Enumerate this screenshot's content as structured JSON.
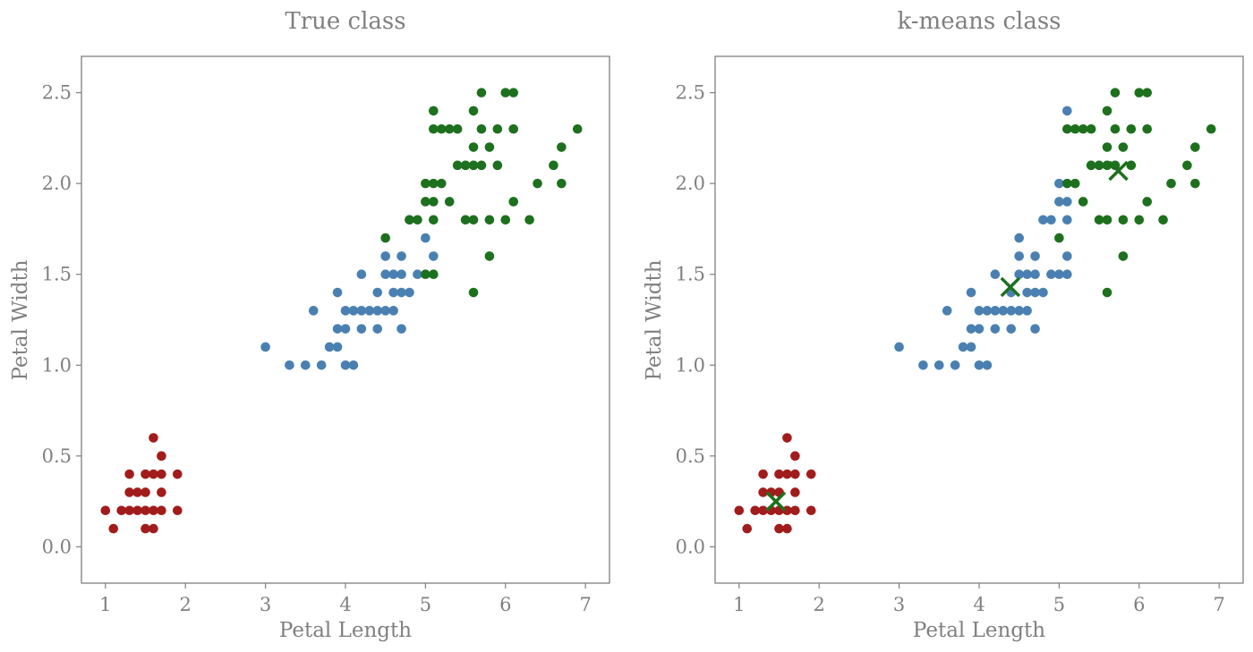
{
  "colors": {
    "text": "#808080",
    "frame": "#808080",
    "setosa": "#a11c1c",
    "versicolor": "#4a80b1",
    "virginica": "#1d701d",
    "centroid": "#1d701d",
    "background": "#ffffff"
  },
  "chart_data": [
    {
      "type": "scatter",
      "title": "True class",
      "xlabel": "Petal Length",
      "ylabel": "Petal Width",
      "xlim": [
        0.7,
        7.3
      ],
      "ylim": [
        -0.2,
        2.7
      ],
      "xticks": [
        1,
        2,
        3,
        4,
        5,
        6,
        7
      ],
      "yticks": [
        0.0,
        0.5,
        1.0,
        1.5,
        2.0,
        2.5
      ],
      "grid": false,
      "legend": "none",
      "series": [
        {
          "color": "#a11c1c",
          "points": [
            [
              1.0,
              0.2
            ],
            [
              1.1,
              0.1
            ],
            [
              1.2,
              0.2
            ],
            [
              1.3,
              0.2
            ],
            [
              1.3,
              0.3
            ],
            [
              1.3,
              0.4
            ],
            [
              1.4,
              0.2
            ],
            [
              1.4,
              0.3
            ],
            [
              1.5,
              0.1
            ],
            [
              1.5,
              0.2
            ],
            [
              1.5,
              0.3
            ],
            [
              1.5,
              0.4
            ],
            [
              1.6,
              0.2
            ],
            [
              1.6,
              0.4
            ],
            [
              1.6,
              0.6
            ],
            [
              1.7,
              0.2
            ],
            [
              1.7,
              0.3
            ],
            [
              1.7,
              0.4
            ],
            [
              1.7,
              0.5
            ],
            [
              1.9,
              0.2
            ],
            [
              1.9,
              0.4
            ],
            [
              1.6,
              0.1
            ]
          ]
        },
        {
          "color": "#4a80b1",
          "points": [
            [
              3.0,
              1.1
            ],
            [
              3.3,
              1.0
            ],
            [
              3.5,
              1.0
            ],
            [
              3.6,
              1.3
            ],
            [
              3.7,
              1.0
            ],
            [
              3.8,
              1.1
            ],
            [
              3.9,
              1.1
            ],
            [
              3.9,
              1.2
            ],
            [
              3.9,
              1.4
            ],
            [
              4.0,
              1.0
            ],
            [
              4.0,
              1.2
            ],
            [
              4.0,
              1.3
            ],
            [
              4.1,
              1.0
            ],
            [
              4.1,
              1.3
            ],
            [
              4.2,
              1.2
            ],
            [
              4.2,
              1.3
            ],
            [
              4.2,
              1.5
            ],
            [
              4.3,
              1.3
            ],
            [
              4.4,
              1.2
            ],
            [
              4.4,
              1.3
            ],
            [
              4.4,
              1.4
            ],
            [
              4.5,
              1.3
            ],
            [
              4.5,
              1.5
            ],
            [
              4.5,
              1.6
            ],
            [
              4.6,
              1.3
            ],
            [
              4.6,
              1.4
            ],
            [
              4.6,
              1.5
            ],
            [
              4.7,
              1.2
            ],
            [
              4.7,
              1.4
            ],
            [
              4.7,
              1.5
            ],
            [
              4.7,
              1.6
            ],
            [
              4.8,
              1.4
            ],
            [
              4.8,
              1.8
            ],
            [
              4.9,
              1.5
            ],
            [
              5.0,
              1.7
            ],
            [
              5.1,
              1.6
            ]
          ]
        },
        {
          "color": "#1d701d",
          "points": [
            [
              4.5,
              1.7
            ],
            [
              4.8,
              1.8
            ],
            [
              4.9,
              1.8
            ],
            [
              5.0,
              1.5
            ],
            [
              5.0,
              1.9
            ],
            [
              5.0,
              2.0
            ],
            [
              5.1,
              1.5
            ],
            [
              5.1,
              1.8
            ],
            [
              5.1,
              1.9
            ],
            [
              5.1,
              2.0
            ],
            [
              5.1,
              2.3
            ],
            [
              5.1,
              2.4
            ],
            [
              5.2,
              2.0
            ],
            [
              5.2,
              2.3
            ],
            [
              5.3,
              1.9
            ],
            [
              5.3,
              2.3
            ],
            [
              5.4,
              2.1
            ],
            [
              5.4,
              2.3
            ],
            [
              5.5,
              1.8
            ],
            [
              5.5,
              2.1
            ],
            [
              5.6,
              1.4
            ],
            [
              5.6,
              1.8
            ],
            [
              5.6,
              2.1
            ],
            [
              5.6,
              2.2
            ],
            [
              5.6,
              2.4
            ],
            [
              5.7,
              2.1
            ],
            [
              5.7,
              2.3
            ],
            [
              5.7,
              2.5
            ],
            [
              5.8,
              1.6
            ],
            [
              5.8,
              1.8
            ],
            [
              5.8,
              2.2
            ],
            [
              5.9,
              2.1
            ],
            [
              5.9,
              2.3
            ],
            [
              6.0,
              1.8
            ],
            [
              6.0,
              2.5
            ],
            [
              6.1,
              1.9
            ],
            [
              6.1,
              2.3
            ],
            [
              6.1,
              2.5
            ],
            [
              6.3,
              1.8
            ],
            [
              6.4,
              2.0
            ],
            [
              6.6,
              2.1
            ],
            [
              6.7,
              2.0
            ],
            [
              6.7,
              2.2
            ],
            [
              6.9,
              2.3
            ]
          ]
        }
      ]
    },
    {
      "type": "scatter",
      "title": "k-means class",
      "xlabel": "Petal Length",
      "ylabel": "Petal Width",
      "xlim": [
        0.7,
        7.3
      ],
      "ylim": [
        -0.2,
        2.7
      ],
      "xticks": [
        1,
        2,
        3,
        4,
        5,
        6,
        7
      ],
      "yticks": [
        0.0,
        0.5,
        1.0,
        1.5,
        2.0,
        2.5
      ],
      "grid": false,
      "legend": "none",
      "series": [
        {
          "color": "#a11c1c",
          "points": [
            [
              1.0,
              0.2
            ],
            [
              1.1,
              0.1
            ],
            [
              1.2,
              0.2
            ],
            [
              1.3,
              0.2
            ],
            [
              1.3,
              0.3
            ],
            [
              1.3,
              0.4
            ],
            [
              1.4,
              0.2
            ],
            [
              1.4,
              0.3
            ],
            [
              1.5,
              0.1
            ],
            [
              1.5,
              0.2
            ],
            [
              1.5,
              0.3
            ],
            [
              1.5,
              0.4
            ],
            [
              1.6,
              0.2
            ],
            [
              1.6,
              0.4
            ],
            [
              1.6,
              0.6
            ],
            [
              1.7,
              0.2
            ],
            [
              1.7,
              0.3
            ],
            [
              1.7,
              0.4
            ],
            [
              1.7,
              0.5
            ],
            [
              1.9,
              0.2
            ],
            [
              1.9,
              0.4
            ],
            [
              1.6,
              0.1
            ]
          ]
        },
        {
          "color": "#4a80b1",
          "points": [
            [
              3.0,
              1.1
            ],
            [
              3.3,
              1.0
            ],
            [
              3.5,
              1.0
            ],
            [
              3.6,
              1.3
            ],
            [
              3.7,
              1.0
            ],
            [
              3.8,
              1.1
            ],
            [
              3.9,
              1.1
            ],
            [
              3.9,
              1.2
            ],
            [
              3.9,
              1.4
            ],
            [
              4.0,
              1.0
            ],
            [
              4.0,
              1.2
            ],
            [
              4.0,
              1.3
            ],
            [
              4.1,
              1.0
            ],
            [
              4.1,
              1.3
            ],
            [
              4.2,
              1.2
            ],
            [
              4.2,
              1.3
            ],
            [
              4.2,
              1.5
            ],
            [
              4.3,
              1.3
            ],
            [
              4.4,
              1.2
            ],
            [
              4.4,
              1.3
            ],
            [
              4.4,
              1.4
            ],
            [
              4.5,
              1.3
            ],
            [
              4.5,
              1.5
            ],
            [
              4.5,
              1.6
            ],
            [
              4.5,
              1.7
            ],
            [
              4.6,
              1.3
            ],
            [
              4.6,
              1.4
            ],
            [
              4.6,
              1.5
            ],
            [
              4.7,
              1.2
            ],
            [
              4.7,
              1.4
            ],
            [
              4.7,
              1.5
            ],
            [
              4.7,
              1.6
            ],
            [
              4.8,
              1.4
            ],
            [
              4.8,
              1.8
            ],
            [
              4.9,
              1.5
            ],
            [
              4.9,
              1.8
            ],
            [
              5.0,
              1.5
            ],
            [
              5.0,
              1.9
            ],
            [
              5.0,
              2.0
            ],
            [
              5.1,
              1.5
            ],
            [
              5.1,
              1.6
            ],
            [
              5.1,
              1.8
            ],
            [
              5.1,
              1.9
            ],
            [
              5.1,
              2.4
            ]
          ]
        },
        {
          "color": "#1d701d",
          "points": [
            [
              5.0,
              1.7
            ],
            [
              5.1,
              2.0
            ],
            [
              5.1,
              2.3
            ],
            [
              5.2,
              2.0
            ],
            [
              5.2,
              2.3
            ],
            [
              5.3,
              1.9
            ],
            [
              5.3,
              2.3
            ],
            [
              5.4,
              2.1
            ],
            [
              5.4,
              2.3
            ],
            [
              5.5,
              1.8
            ],
            [
              5.5,
              2.1
            ],
            [
              5.6,
              1.4
            ],
            [
              5.6,
              1.8
            ],
            [
              5.6,
              2.1
            ],
            [
              5.6,
              2.2
            ],
            [
              5.6,
              2.4
            ],
            [
              5.7,
              2.1
            ],
            [
              5.7,
              2.3
            ],
            [
              5.7,
              2.5
            ],
            [
              5.8,
              1.6
            ],
            [
              5.8,
              1.8
            ],
            [
              5.8,
              2.2
            ],
            [
              5.9,
              2.1
            ],
            [
              5.9,
              2.3
            ],
            [
              6.0,
              1.8
            ],
            [
              6.0,
              2.5
            ],
            [
              6.1,
              1.9
            ],
            [
              6.1,
              2.3
            ],
            [
              6.1,
              2.5
            ],
            [
              6.3,
              1.8
            ],
            [
              6.4,
              2.0
            ],
            [
              6.6,
              2.1
            ],
            [
              6.7,
              2.0
            ],
            [
              6.7,
              2.2
            ],
            [
              6.9,
              2.3
            ]
          ]
        }
      ],
      "centroids": [
        [
          1.46,
          0.25
        ],
        [
          4.39,
          1.43
        ],
        [
          5.74,
          2.07
        ]
      ]
    }
  ]
}
